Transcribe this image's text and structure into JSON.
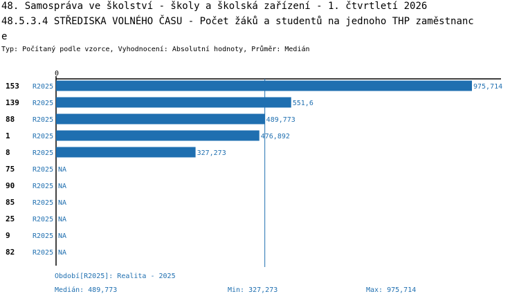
{
  "title_line1": "48. Samospráva ve školství - školy a školská zařízení - 1. čtvrtletí 2026",
  "title_line2": "48.5.3.4 STŘEDISKA VOLNÉHO ČASU - Počet žáků a studentů na jednoho THP zaměstnanc",
  "title_line3": "e",
  "subtitle": "Typ: Počítaný podle vzorce, Vyhodnocení: Absolutní hodnoty, Průměr: Medián",
  "colors": {
    "bar": "#1f6fb0",
    "text_blue": "#1f6fb0",
    "axis": "#000000"
  },
  "chart_data": {
    "type": "bar",
    "orientation": "horizontal",
    "axis_tick_label": "0",
    "xlim": [
      0,
      975.714
    ],
    "median_line": 489.773,
    "categories": [
      "153",
      "139",
      "88",
      "1",
      "8",
      "75",
      "90",
      "85",
      "25",
      "9",
      "82"
    ],
    "period_labels": [
      "R2025",
      "R2025",
      "R2025",
      "R2025",
      "R2025",
      "R2025",
      "R2025",
      "R2025",
      "R2025",
      "R2025",
      "R2025"
    ],
    "values": [
      975.714,
      551.6,
      489.773,
      476.892,
      327.273,
      null,
      null,
      null,
      null,
      null,
      null
    ],
    "value_labels": [
      "975,714",
      "551,6",
      "489,773",
      "476,892",
      "327,273",
      "NA",
      "NA",
      "NA",
      "NA",
      "NA",
      "NA"
    ]
  },
  "footer": {
    "period": "Období[R2025]: Realita - 2025",
    "median": "Medián: 489,773",
    "min": "Min: 327,273",
    "max": "Max: 975,714"
  }
}
